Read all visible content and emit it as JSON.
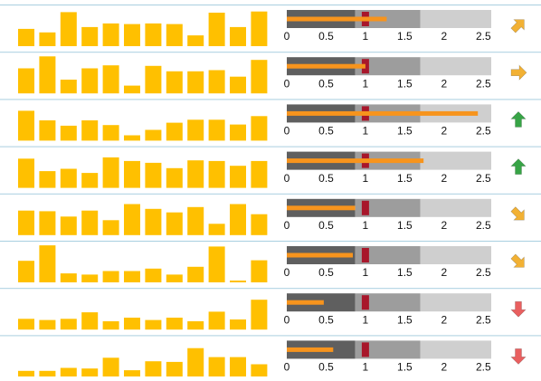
{
  "chart_data": {
    "type": "bar",
    "title": "",
    "bullet_axis": {
      "min": 0,
      "max": 2.6,
      "tick_values": [
        0,
        0.5,
        1,
        1.5,
        2,
        2.5
      ],
      "tick_labels": [
        "0",
        "0.5",
        "1",
        "1.5",
        "2",
        "2.5"
      ],
      "band_edges": [
        0.87,
        1.7,
        2.6
      ],
      "target": 1
    },
    "rows": [
      {
        "sparkline": [
          2.9,
          2.3,
          5.7,
          3.2,
          3.8,
          3.7,
          3.8,
          3.7,
          1.8,
          5.6,
          3.2,
          5.8
        ],
        "bullet_value": 1.27,
        "trend": "up-right"
      },
      {
        "sparkline": [
          4.2,
          6.2,
          2.3,
          4.2,
          4.7,
          1.3,
          4.6,
          3.7,
          3.7,
          3.9,
          2.8,
          5.6
        ],
        "bullet_value": 1.0,
        "trend": "right"
      },
      {
        "sparkline": [
          5.0,
          3.4,
          2.5,
          3.4,
          2.6,
          0.9,
          1.8,
          3.0,
          3.5,
          3.5,
          2.7,
          4.1
        ],
        "bullet_value": 2.43,
        "trend": "up"
      },
      {
        "sparkline": [
          4.9,
          2.8,
          3.2,
          2.5,
          5.1,
          4.5,
          4.2,
          3.3,
          4.6,
          4.5,
          3.7,
          4.5
        ],
        "bullet_value": 1.74,
        "trend": "up"
      },
      {
        "sparkline": [
          4.1,
          4.0,
          3.1,
          4.1,
          2.5,
          5.2,
          4.4,
          3.8,
          4.7,
          1.9,
          5.2,
          3.5
        ],
        "bullet_value": 0.87,
        "trend": "down-right"
      },
      {
        "sparkline": [
          3.6,
          6.2,
          1.5,
          1.3,
          1.9,
          1.9,
          2.3,
          1.3,
          2.6,
          6.0,
          0.3,
          3.7
        ],
        "bullet_value": 0.84,
        "trend": "down-right"
      },
      {
        "sparkline": [
          1.8,
          1.6,
          1.8,
          2.9,
          1.4,
          2.0,
          1.6,
          2.0,
          1.4,
          3.0,
          1.7,
          5.0
        ],
        "bullet_value": 0.47,
        "trend": "down"
      },
      {
        "sparkline": [
          1.0,
          1.0,
          1.5,
          1.4,
          3.2,
          1.1,
          2.6,
          2.5,
          4.8,
          3.3,
          3.3,
          2.1
        ],
        "bullet_value": 0.59,
        "trend": "down"
      }
    ]
  },
  "colors": {
    "sparkline_bar": "#ffc000",
    "bullet_value": "#f7941d",
    "band_low": "#5f5f5f",
    "band_mid": "#9d9d9d",
    "band_high": "#cfcfcf",
    "target_marker": "#a8172b",
    "row_rule": "#a9cfe0",
    "arrow_up": "#37a446",
    "arrow_side": "#f2b134",
    "arrow_down": "#e95f5f"
  },
  "trend_icons": {
    "up": "arrow-up-icon",
    "up-right": "arrow-up-right-icon",
    "right": "arrow-right-icon",
    "down-right": "arrow-down-right-icon",
    "down": "arrow-down-icon"
  }
}
